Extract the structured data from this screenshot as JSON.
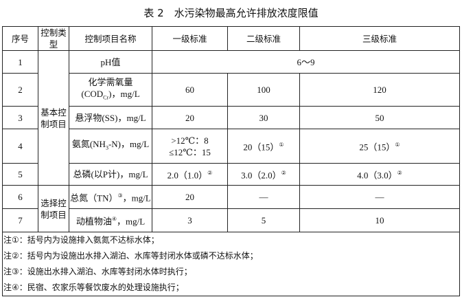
{
  "title": "表 2　水污染物最高允许排放浓度限值",
  "headers": [
    "序号",
    "控制类型",
    "控制项目名称",
    "一级标准",
    "二级标准",
    "三级标准"
  ],
  "groups": {
    "basic": "基本控制项目",
    "optional": "选择控制项目"
  },
  "rows": [
    {
      "no": "1",
      "name": "pH值",
      "merged": "6～9"
    },
    {
      "no": "2",
      "name": "化学需氧量(COD",
      "name_sub": "Cr",
      "name_tail": ")，mg/L",
      "l1": "60",
      "l2": "100",
      "l3": "120"
    },
    {
      "no": "3",
      "name": "悬浮物(SS)，mg/L",
      "l1": "20",
      "l2": "30",
      "l3": "50"
    },
    {
      "no": "4",
      "name": "氨氮(NH",
      "name_sub": "3",
      "name_tail": "-N)，mg/L",
      "l1a": ">12℃：8",
      "l1b": "≤12℃：15",
      "l2": "20（15）",
      "l3": "25（15）",
      "sup": "①"
    },
    {
      "no": "5",
      "name": "总磷(以P计)，mg/L",
      "l1": "2.0（1.0）",
      "l2": "3.0（2.0）",
      "l3": "4.0（3.0）",
      "sup": "②"
    },
    {
      "no": "6",
      "name": "总氮（TN）",
      "name_sup": "③",
      "name_tail": "，mg/L",
      "l1": "20",
      "l2": "—",
      "l3": "—"
    },
    {
      "no": "7",
      "name": "动植物油",
      "name_sup": "④",
      "name_tail": "，mg/L",
      "l1": "3",
      "l2": "5",
      "l3": "10"
    }
  ],
  "notes": [
    "注①：括号内为设施排入氨氮不达标水体；",
    "注②：括号内为设施出水排入湖泊、水库等封闭水体或磷不达标水体；",
    "注③：设施出水排入湖泊、水库等封闭水体时执行；",
    "注④：民宿、农家乐等餐饮废水的处理设施执行；"
  ]
}
